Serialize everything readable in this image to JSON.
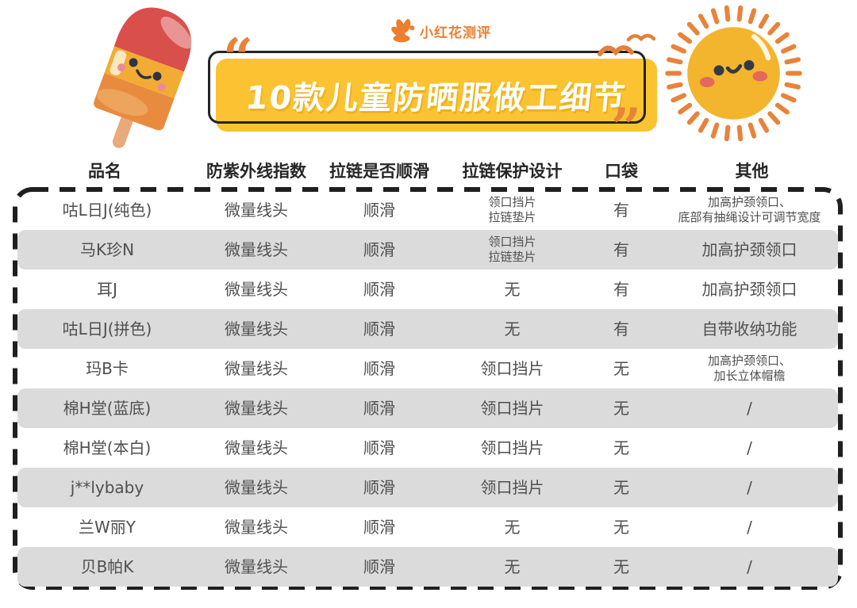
{
  "brand": {
    "logo_text": "小红花测评"
  },
  "banner": {
    "title": "10款儿童防晒服做工细节",
    "open_quote": "“",
    "close_quote": "”"
  },
  "colors": {
    "banner_yellow": "#FBC331",
    "accent_orange": "#E8833A",
    "logo_orange": "#ED7D2F",
    "row_gray": "#DBDBDB",
    "header_text": "#262626",
    "body_text": "#4F4F4F",
    "dash_border": "#1F1F1F"
  },
  "chart_data": {
    "type": "table",
    "title": "10款儿童防晒服做工细节",
    "headers": [
      "品名",
      "防紫外线指数",
      "拉链是否顺滑",
      "拉链保护设计",
      "口袋",
      "其他"
    ],
    "rows": [
      {
        "name": "咕L日J(纯色)",
        "uv": "微量线头",
        "zip_smooth": "顺滑",
        "zip_protect": "领口挡片\n拉链垫片",
        "pocket": "有",
        "other": "加高护颈领口、\n底部有抽绳设计可调节宽度"
      },
      {
        "name": "马K珍N",
        "uv": "微量线头",
        "zip_smooth": "顺滑",
        "zip_protect": "领口挡片\n拉链垫片",
        "pocket": "有",
        "other": "加高护颈领口"
      },
      {
        "name": "耳J",
        "uv": "微量线头",
        "zip_smooth": "顺滑",
        "zip_protect": "无",
        "pocket": "有",
        "other": "加高护颈领口"
      },
      {
        "name": "咕L日J(拼色)",
        "uv": "微量线头",
        "zip_smooth": "顺滑",
        "zip_protect": "无",
        "pocket": "有",
        "other": "自带收纳功能"
      },
      {
        "name": "玛B卡",
        "uv": "微量线头",
        "zip_smooth": "顺滑",
        "zip_protect": "领口挡片",
        "pocket": "无",
        "other": "加高护颈领口、\n加长立体帽檐"
      },
      {
        "name": "棉H堂(蓝底)",
        "uv": "微量线头",
        "zip_smooth": "顺滑",
        "zip_protect": "领口挡片",
        "pocket": "无",
        "other": "/"
      },
      {
        "name": "棉H堂(本白)",
        "uv": "微量线头",
        "zip_smooth": "顺滑",
        "zip_protect": "领口挡片",
        "pocket": "无",
        "other": "/"
      },
      {
        "name": "j**lybaby",
        "uv": "微量线头",
        "zip_smooth": "顺滑",
        "zip_protect": "领口挡片",
        "pocket": "无",
        "other": "/"
      },
      {
        "name": "兰W丽Y",
        "uv": "微量线头",
        "zip_smooth": "顺滑",
        "zip_protect": "无",
        "pocket": "无",
        "other": "/"
      },
      {
        "name": "贝B帕K",
        "uv": "微量线头",
        "zip_smooth": "顺滑",
        "zip_protect": "无",
        "pocket": "无",
        "other": "/"
      }
    ]
  }
}
